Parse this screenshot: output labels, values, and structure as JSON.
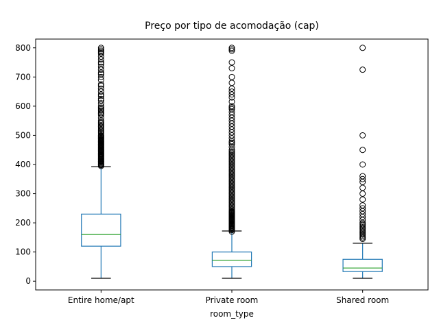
{
  "chart_data": {
    "type": "box",
    "title": "Preço por tipo de acomodação (cap)",
    "xlabel": "room_type",
    "ylabel": "",
    "ylim": [
      -30,
      830
    ],
    "yticks": [
      0,
      100,
      200,
      300,
      400,
      500,
      600,
      700,
      800
    ],
    "grid": false,
    "colors": {
      "box": "#1f77b4",
      "median": "#2ca02c",
      "flier": "#000000"
    },
    "categories": [
      "Entire home/apt",
      "Private room",
      "Shared room"
    ],
    "boxes": [
      {
        "category": "Entire home/apt",
        "whisker_low": 10,
        "q1": 120,
        "median": 160,
        "q3": 230,
        "whisker_high": 392,
        "fliers": [
          395,
          398,
          400,
          402,
          405,
          408,
          410,
          412,
          415,
          418,
          420,
          422,
          425,
          428,
          430,
          433,
          435,
          438,
          440,
          443,
          445,
          448,
          450,
          453,
          455,
          458,
          460,
          463,
          465,
          468,
          470,
          473,
          475,
          478,
          480,
          483,
          485,
          488,
          490,
          493,
          495,
          498,
          500,
          505,
          510,
          515,
          520,
          525,
          530,
          535,
          540,
          545,
          550,
          560,
          570,
          575,
          580,
          585,
          590,
          595,
          600,
          610,
          620,
          625,
          635,
          640,
          650,
          660,
          670,
          675,
          690,
          700,
          710,
          715,
          725,
          735,
          745,
          750,
          760,
          770,
          780,
          785,
          790,
          795,
          800
        ]
      },
      {
        "category": "Private room",
        "whisker_low": 10,
        "q1": 50,
        "median": 72,
        "q3": 100,
        "whisker_high": 172,
        "fliers": [
          170,
          175,
          178,
          180,
          183,
          185,
          188,
          190,
          193,
          195,
          198,
          200,
          203,
          205,
          208,
          210,
          213,
          215,
          218,
          220,
          223,
          225,
          228,
          230,
          233,
          235,
          238,
          240,
          245,
          250,
          255,
          260,
          265,
          270,
          275,
          280,
          285,
          290,
          295,
          300,
          305,
          310,
          315,
          320,
          325,
          330,
          335,
          340,
          345,
          350,
          355,
          360,
          365,
          370,
          375,
          380,
          385,
          390,
          395,
          400,
          405,
          410,
          415,
          420,
          425,
          430,
          435,
          440,
          445,
          450,
          460,
          470,
          475,
          480,
          490,
          500,
          510,
          520,
          530,
          540,
          550,
          560,
          570,
          580,
          590,
          595,
          600,
          615,
          630,
          640,
          650,
          660,
          680,
          700,
          730,
          750,
          790,
          795,
          800
        ]
      },
      {
        "category": "Shared room",
        "whisker_low": 10,
        "q1": 33,
        "median": 45,
        "q3": 75,
        "whisker_high": 130,
        "fliers": [
          145,
          150,
          155,
          160,
          165,
          170,
          175,
          180,
          185,
          190,
          195,
          200,
          210,
          220,
          230,
          240,
          250,
          260,
          280,
          300,
          320,
          340,
          350,
          360,
          400,
          450,
          500,
          725,
          800
        ]
      }
    ]
  }
}
